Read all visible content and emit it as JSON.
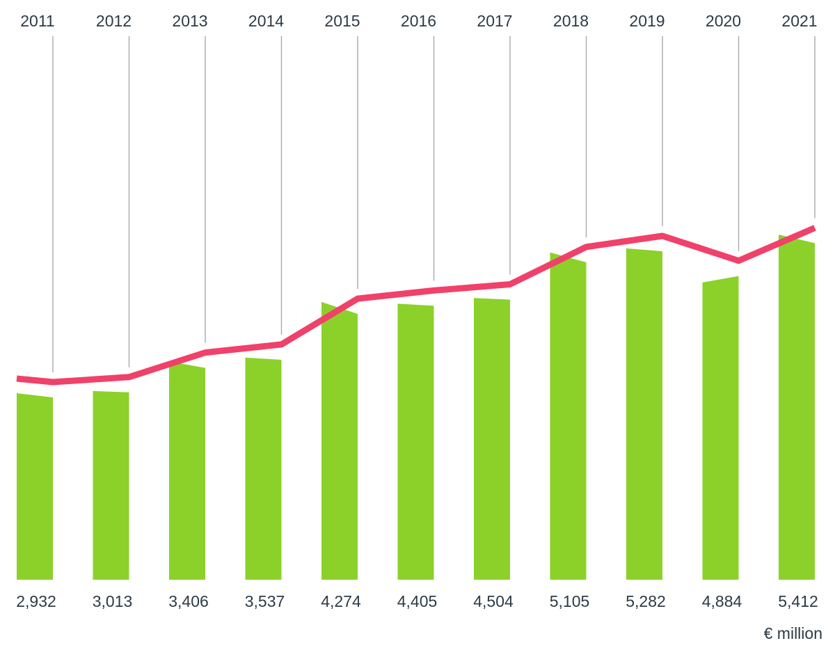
{
  "chart_data": {
    "type": "bar",
    "categories": [
      "2011",
      "2012",
      "2013",
      "2014",
      "2015",
      "2016",
      "2017",
      "2018",
      "2019",
      "2020",
      "2021"
    ],
    "values": [
      2932,
      3013,
      3406,
      3537,
      4274,
      4405,
      4504,
      5105,
      5282,
      4884,
      5412
    ],
    "value_labels": [
      "2,932",
      "3,013",
      "3,406",
      "3,537",
      "4,274",
      "4,405",
      "4,504",
      "5,105",
      "5,282",
      "4,884",
      "5,412"
    ],
    "unit": "€ million",
    "ylim": [
      0,
      6000
    ],
    "grid": false,
    "legend": "none",
    "trend_line": true,
    "colors": {
      "bar": "#8bd12a",
      "line": "#f0416a",
      "leader": "#a8a8a8",
      "text": "#2d3a45"
    }
  }
}
